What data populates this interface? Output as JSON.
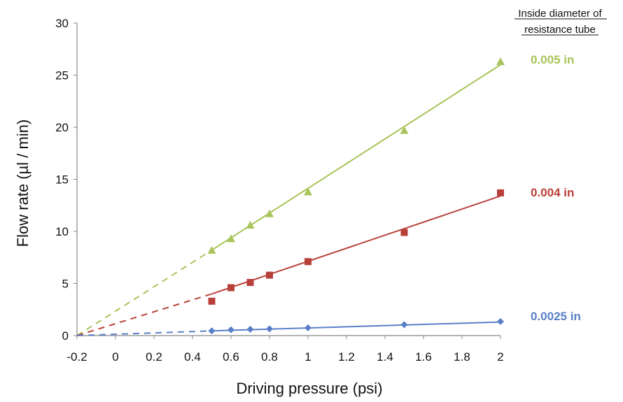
{
  "chart_data": {
    "type": "scatter",
    "xlabel": "Driving pressure (psi)",
    "ylabel": "Flow rate  (µl / min)",
    "xlim": [
      -0.2,
      2
    ],
    "ylim": [
      0,
      30
    ],
    "xticks": [
      "-0.2",
      "0",
      "0.2",
      "0.4",
      "0.6",
      "0.8",
      "1",
      "1.2",
      "1.4",
      "1.6",
      "1.8",
      "2"
    ],
    "yticks": [
      "0",
      "5",
      "10",
      "15",
      "20",
      "25",
      "30"
    ],
    "grid": false,
    "legend_title_lines": [
      "Inside diameter of",
      "resistance tube"
    ],
    "series": [
      {
        "name": "0.005 in",
        "color": "#a9c45a",
        "marker": "triangle",
        "x": [
          0.5,
          0.6,
          0.7,
          0.8,
          1.0,
          1.5,
          2.0
        ],
        "y": [
          8.2,
          9.3,
          10.6,
          11.7,
          13.8,
          19.7,
          26.3
        ],
        "fit_segments": [
          {
            "style": "dashed",
            "x": [
              -0.2,
              0.5
            ],
            "y": [
              0.0,
              8.2
            ]
          },
          {
            "style": "solid",
            "x": [
              0.5,
              2.0
            ],
            "y": [
              8.2,
              26.0
            ]
          }
        ]
      },
      {
        "name": "0.004 in",
        "color": "#b8403a",
        "marker": "square",
        "x": [
          0.5,
          0.6,
          0.7,
          0.8,
          1.0,
          1.5,
          2.0
        ],
        "y": [
          3.3,
          4.6,
          5.1,
          5.8,
          7.1,
          9.9,
          13.7
        ],
        "fit_segments": [
          {
            "style": "dashed",
            "x": [
              -0.2,
              0.5
            ],
            "y": [
              0.0,
              4.0
            ]
          },
          {
            "style": "solid",
            "x": [
              0.5,
              2.0
            ],
            "y": [
              4.0,
              13.4
            ]
          }
        ]
      },
      {
        "name": "0.0025 in",
        "color": "#5a7fc8",
        "marker": "diamond",
        "x": [
          0.5,
          0.6,
          0.7,
          0.8,
          1.0,
          1.5,
          2.0
        ],
        "y": [
          0.45,
          0.55,
          0.6,
          0.65,
          0.75,
          1.05,
          1.35
        ],
        "fit_segments": [
          {
            "style": "dashed",
            "x": [
              -0.2,
              0.5
            ],
            "y": [
              0.0,
              0.45
            ]
          },
          {
            "style": "solid",
            "x": [
              0.5,
              2.0
            ],
            "y": [
              0.45,
              1.3
            ]
          }
        ]
      }
    ]
  }
}
